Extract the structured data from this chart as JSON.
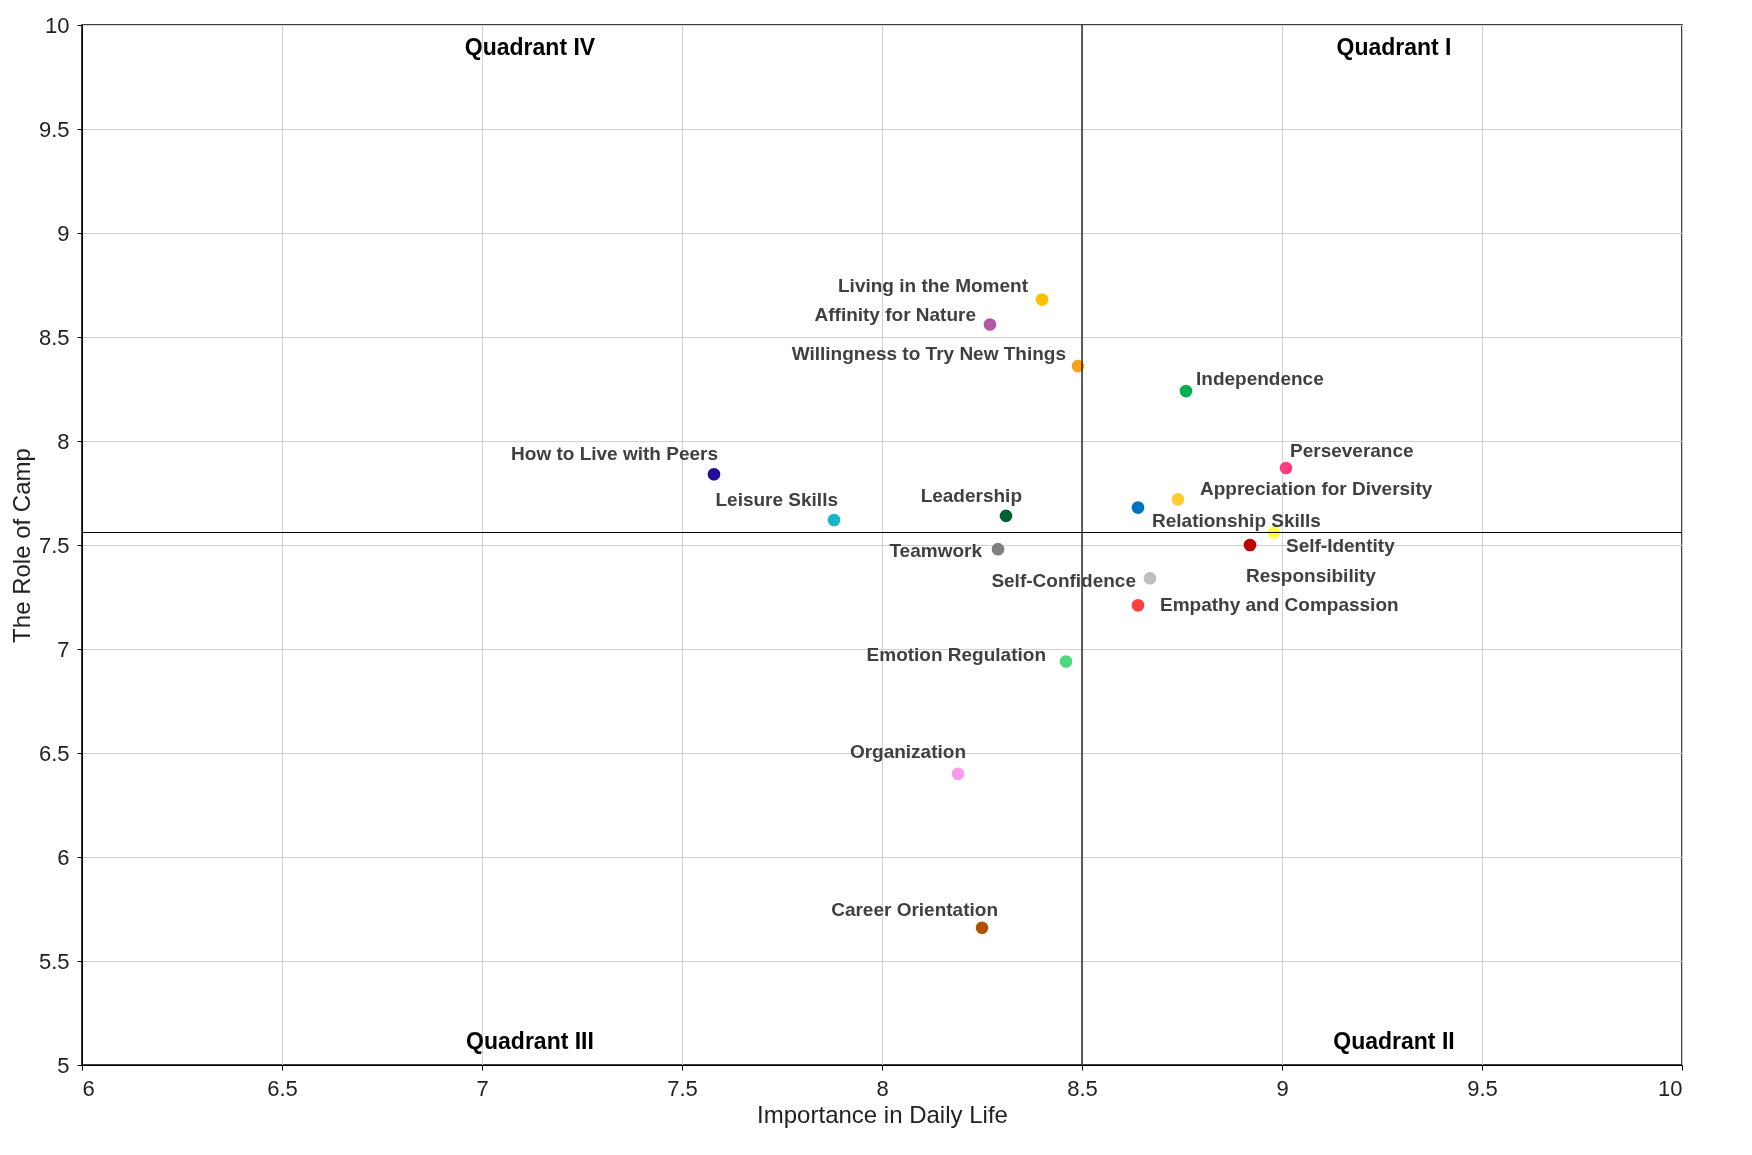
{
  "chart_data": {
    "type": "scatter",
    "xlabel": "Importance in Daily Life",
    "ylabel": "The Role of Camp",
    "xlim": [
      6,
      10
    ],
    "ylim": [
      5,
      10
    ],
    "xticks": [
      6,
      6.5,
      7,
      7.5,
      8,
      8.5,
      9,
      9.5,
      10
    ],
    "yticks": [
      5,
      5.5,
      6,
      6.5,
      7,
      7.5,
      8,
      8.5,
      9,
      9.5,
      10
    ],
    "grid": true,
    "marker": "circle",
    "series": [
      {
        "name": "Living in the Moment",
        "color": "#ffc000",
        "x": [
          8.4
        ],
        "values": [
          8.68
        ]
      },
      {
        "name": "Affinity for Nature",
        "color": "#b455a8",
        "x": [
          8.27
        ],
        "values": [
          8.56
        ]
      },
      {
        "name": "Willingness to Try New Things",
        "color": "#ffa01c",
        "x": [
          8.49
        ],
        "values": [
          8.36
        ]
      },
      {
        "name": "Independence",
        "color": "#00b050",
        "x": [
          8.76
        ],
        "values": [
          8.24
        ]
      },
      {
        "name": "How to Live with Peers",
        "color": "#230c9c",
        "x": [
          7.58
        ],
        "values": [
          7.84
        ]
      },
      {
        "name": "Leisure Skills",
        "color": "#17b4cc",
        "x": [
          7.88
        ],
        "values": [
          7.62
        ]
      },
      {
        "name": "Leadership",
        "color": "#006030",
        "x": [
          8.31
        ],
        "values": [
          7.64
        ]
      },
      {
        "name": "Teamwork",
        "color": "#808080",
        "x": [
          8.29
        ],
        "values": [
          7.48
        ]
      },
      {
        "name": "Relationship Skills",
        "color": "#0070c0",
        "x": [
          8.64
        ],
        "values": [
          7.68
        ]
      },
      {
        "name": "Appreciation for Diversity",
        "color": "#ffcc33",
        "x": [
          8.74
        ],
        "values": [
          7.72
        ]
      },
      {
        "name": "Perseverance",
        "color": "#ff3d7f",
        "x": [
          9.01
        ],
        "values": [
          7.87
        ]
      },
      {
        "name": "Self-Identity",
        "color": "#ffff40",
        "x": [
          8.98
        ],
        "values": [
          7.56
        ]
      },
      {
        "name": "Responsibility",
        "color": "#c00000",
        "x": [
          8.92
        ],
        "values": [
          7.5
        ]
      },
      {
        "name": "Self-Confidence",
        "color": "#bfbfbf",
        "x": [
          8.67
        ],
        "values": [
          7.34
        ]
      },
      {
        "name": "Empathy and Compassion",
        "color": "#ff4040",
        "x": [
          8.64
        ],
        "values": [
          7.21
        ]
      },
      {
        "name": "Emotion Regulation",
        "color": "#4cd97e",
        "x": [
          8.46
        ],
        "values": [
          6.94
        ]
      },
      {
        "name": "Organization",
        "color": "#ff99ee",
        "x": [
          8.19
        ],
        "values": [
          6.4
        ]
      },
      {
        "name": "Career Orientation",
        "color": "#b35000",
        "x": [
          8.25
        ],
        "values": [
          5.66
        ]
      }
    ],
    "ref_lines": [
      {
        "axis": "x",
        "value": 8.5,
        "color": "#000000"
      },
      {
        "axis": "y",
        "value": 7.56,
        "color": "#000000"
      }
    ],
    "annotations": [
      "Quadrant IV",
      "Quadrant I",
      "Quadrant III",
      "Quadrant II"
    ]
  }
}
